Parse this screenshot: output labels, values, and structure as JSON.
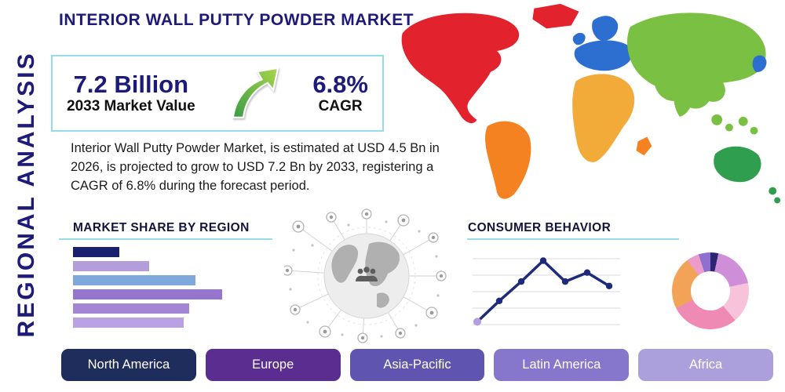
{
  "theme": {
    "navy": "#1e1a78",
    "teal": "#98dcea"
  },
  "header": {
    "title": "INTERIOR WALL PUTTY POWDER MARKET",
    "side_label": "REGIONAL ANALYSIS"
  },
  "stats": {
    "value": "7.2 Billion",
    "value_label": "2033 Market Value",
    "cagr": "6.8%",
    "cagr_label": "CAGR"
  },
  "description": "Interior Wall Putty Powder Market, is estimated at USD 4.5 Bn in 2026, is projected to grow to USD 7.2 Bn by 2033, registering a CAGR of 6.8% during the forecast period.",
  "sections": {
    "market_share_title": "MARKET SHARE BY REGION",
    "consumer_behavior_title": "CONSUMER BEHAVIOR"
  },
  "chart_data": [
    {
      "type": "bar",
      "title": "MARKET SHARE BY REGION",
      "orientation": "horizontal",
      "note": "six unlabeled bars, relative share estimated from bar lengths",
      "values": [
        31,
        51,
        82,
        100,
        78,
        74
      ],
      "xlim": [
        0,
        100
      ],
      "colors": [
        "#1a1f6e",
        "#b39ddb",
        "#7fa8dc",
        "#9575cd",
        "#a385d6",
        "#baa2e2"
      ]
    },
    {
      "type": "line",
      "title": "CONSUMER BEHAVIOR",
      "note": "unlabeled trend line, values estimated 0-100 scale",
      "values": [
        8,
        36,
        62,
        90,
        62,
        74,
        56
      ],
      "ylim": [
        0,
        100
      ],
      "grid": "horizontal",
      "line_color": "#1e2a7a",
      "start_marker_color": "#b39ddb"
    },
    {
      "type": "pie",
      "style": "donut",
      "note": "unlabeled donut, slice angles estimated in degrees clockwise from top",
      "slices": [
        {
          "color": "#2b2672",
          "from": 0,
          "to": 12
        },
        {
          "color": "#cf8fd8",
          "from": 12,
          "to": 78
        },
        {
          "color": "#f6c3da",
          "from": 78,
          "to": 140
        },
        {
          "color": "#ef8ab5",
          "from": 140,
          "to": 243
        },
        {
          "color": "#f2a358",
          "from": 243,
          "to": 323
        },
        {
          "color": "#eb9ccb",
          "from": 323,
          "to": 342
        },
        {
          "color": "#8f6fd0",
          "from": 342,
          "to": 360
        }
      ]
    }
  ],
  "regions": [
    {
      "label": "North America",
      "color": "#1f2d5c"
    },
    {
      "label": "Europe",
      "color": "#5b2d90"
    },
    {
      "label": "Asia-Pacific",
      "color": "#5f55b0"
    },
    {
      "label": "Latin America",
      "color": "#8677cd"
    },
    {
      "label": "Africa",
      "color": "#aca0dc"
    }
  ],
  "map": {
    "colors": {
      "north_america": "#e2232e",
      "greenland": "#e2232e",
      "south_america": "#f58220",
      "europe": "#2d6fd1",
      "uk": "#2d6fd1",
      "scandinavia": "#2d6fd1",
      "japan": "#2d6fd1",
      "africa": "#f2ab38",
      "madagascar": "#f58220",
      "asia": "#7ac143",
      "india": "#7ac143",
      "se_asia": "#7ac143",
      "australia": "#2f9e4e",
      "new_zealand": "#2f9e4e"
    }
  }
}
